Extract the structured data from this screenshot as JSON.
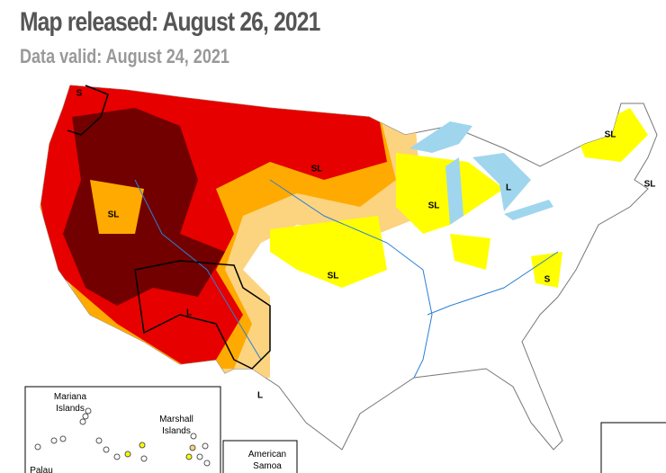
{
  "header": {
    "title": "Map released: August 26, 2021",
    "subtitle": "Data valid: August 24, 2021"
  },
  "map": {
    "impact_labels": [
      "S",
      "SL",
      "SL",
      "SL",
      "L",
      "SL",
      "SL",
      "SL",
      "S",
      "L",
      "L"
    ]
  },
  "insets": {
    "mariana": [
      "Mariana",
      "Islands"
    ],
    "marshall": [
      "Marshall",
      "Islands"
    ],
    "samoa": [
      "American",
      "Samoa"
    ],
    "palau": "Palau"
  }
}
